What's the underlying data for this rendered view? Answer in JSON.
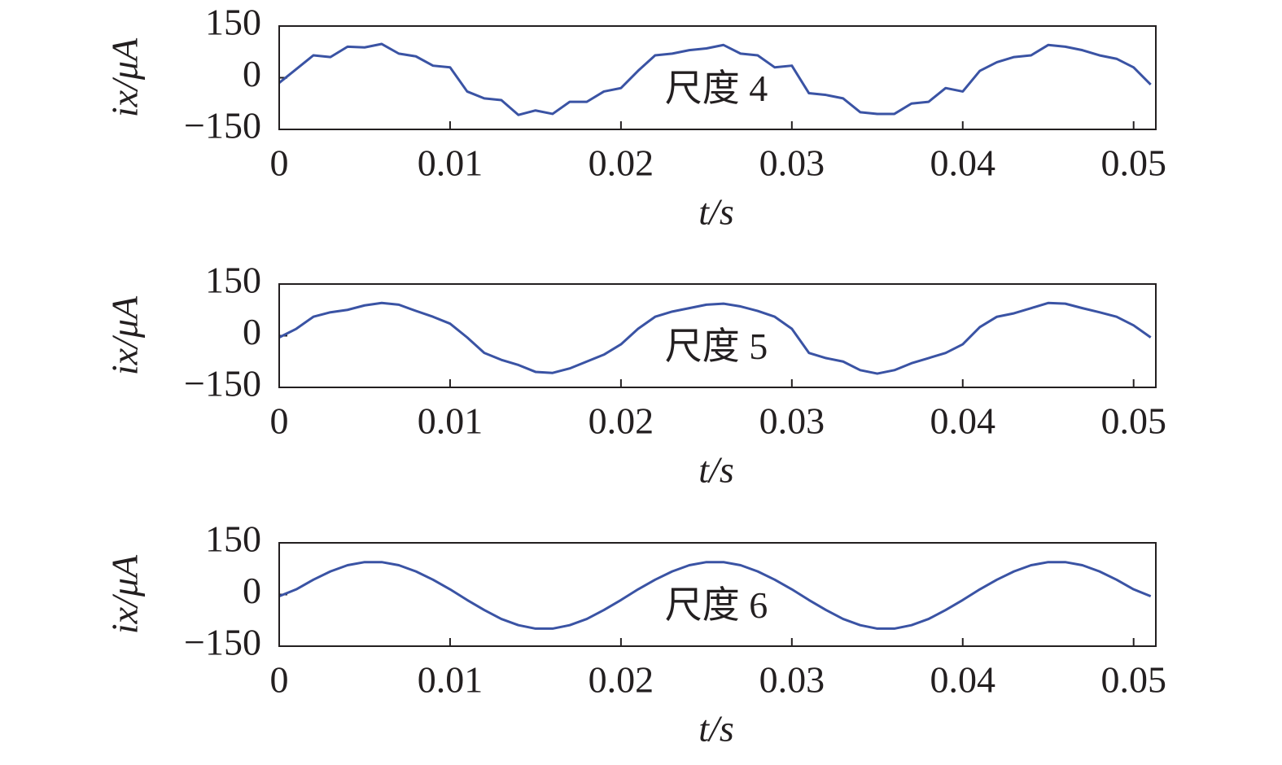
{
  "chart_data": [
    {
      "type": "line",
      "annotation": "尺度 4",
      "xlabel": "t/s",
      "ylabel": "ix/μA",
      "x": [
        0,
        0.001,
        0.002,
        0.003,
        0.004,
        0.005,
        0.006,
        0.007,
        0.008,
        0.009,
        0.01,
        0.011,
        0.012,
        0.013,
        0.014,
        0.015,
        0.016,
        0.017,
        0.018,
        0.019,
        0.02,
        0.021,
        0.022,
        0.023,
        0.024,
        0.025,
        0.026,
        0.027,
        0.028,
        0.029,
        0.03,
        0.031,
        0.032,
        0.033,
        0.034,
        0.035,
        0.036,
        0.037,
        0.038,
        0.039,
        0.04,
        0.041,
        0.042,
        0.043,
        0.044,
        0.045,
        0.046,
        0.047,
        0.048,
        0.049,
        0.05,
        0.051
      ],
      "series": [
        {
          "color": "#3a53a4",
          "values": [
            -15,
            25,
            65,
            60,
            90,
            88,
            98,
            70,
            62,
            35,
            30,
            -40,
            -60,
            -65,
            -108,
            -95,
            -105,
            -70,
            -70,
            -40,
            -30,
            20,
            65,
            70,
            80,
            85,
            95,
            70,
            65,
            30,
            35,
            -45,
            -50,
            -60,
            -100,
            -105,
            -105,
            -75,
            -70,
            -30,
            -40,
            20,
            45,
            60,
            65,
            95,
            90,
            80,
            65,
            55,
            30,
            -20
          ]
        }
      ],
      "xlim": [
        0,
        0.0513
      ],
      "xticks": [
        0,
        0.01,
        0.02,
        0.03,
        0.04,
        0.05
      ],
      "ylim": [
        -150,
        150
      ],
      "yticks": [
        {
          "value": -150,
          "label": "−150"
        },
        0,
        150
      ]
    },
    {
      "type": "line",
      "annotation": "尺度 5",
      "xlabel": "t/s",
      "ylabel": "ix/μA",
      "x": [
        0,
        0.001,
        0.002,
        0.003,
        0.004,
        0.005,
        0.006,
        0.007,
        0.008,
        0.009,
        0.01,
        0.011,
        0.012,
        0.013,
        0.014,
        0.015,
        0.016,
        0.017,
        0.018,
        0.019,
        0.02,
        0.021,
        0.022,
        0.023,
        0.024,
        0.025,
        0.026,
        0.027,
        0.028,
        0.029,
        0.03,
        0.031,
        0.032,
        0.033,
        0.034,
        0.035,
        0.036,
        0.037,
        0.038,
        0.039,
        0.04,
        0.041,
        0.042,
        0.043,
        0.044,
        0.045,
        0.046,
        0.047,
        0.048,
        0.049,
        0.05,
        0.051
      ],
      "series": [
        {
          "color": "#3a53a4",
          "values": [
            -5,
            20,
            55,
            68,
            75,
            88,
            95,
            90,
            72,
            55,
            35,
            -5,
            -50,
            -70,
            -85,
            -105,
            -108,
            -95,
            -75,
            -55,
            -25,
            20,
            55,
            70,
            80,
            90,
            93,
            85,
            72,
            55,
            20,
            -50,
            -65,
            -75,
            -100,
            -110,
            -100,
            -80,
            -65,
            -50,
            -25,
            25,
            55,
            65,
            80,
            95,
            93,
            80,
            68,
            55,
            30,
            -5
          ]
        }
      ],
      "xlim": [
        0,
        0.0513
      ],
      "xticks": [
        0,
        0.01,
        0.02,
        0.03,
        0.04,
        0.05
      ],
      "ylim": [
        -150,
        150
      ],
      "yticks": [
        {
          "value": -150,
          "label": "−150"
        },
        0,
        150
      ]
    },
    {
      "type": "line",
      "annotation": "尺度 6",
      "xlabel": "t/s",
      "ylabel": "ix/μA",
      "x": [
        0,
        0.001,
        0.002,
        0.003,
        0.004,
        0.005,
        0.006,
        0.007,
        0.008,
        0.009,
        0.01,
        0.011,
        0.012,
        0.013,
        0.014,
        0.015,
        0.016,
        0.017,
        0.018,
        0.019,
        0.02,
        0.021,
        0.022,
        0.023,
        0.024,
        0.025,
        0.026,
        0.027,
        0.028,
        0.029,
        0.03,
        0.031,
        0.032,
        0.033,
        0.034,
        0.035,
        0.036,
        0.037,
        0.038,
        0.039,
        0.04,
        0.041,
        0.042,
        0.043,
        0.044,
        0.045,
        0.046,
        0.047,
        0.048,
        0.049,
        0.05,
        0.051
      ],
      "series": [
        {
          "color": "#3a53a4",
          "values": [
            -5,
            15,
            43,
            67,
            85,
            94,
            94,
            85,
            67,
            43,
            15,
            -16,
            -45,
            -71,
            -89,
            -99,
            -99,
            -89,
            -71,
            -45,
            -16,
            15,
            43,
            67,
            85,
            94,
            94,
            85,
            67,
            43,
            15,
            -16,
            -45,
            -71,
            -89,
            -99,
            -99,
            -89,
            -71,
            -45,
            -16,
            15,
            43,
            67,
            85,
            94,
            94,
            85,
            67,
            43,
            15,
            -5
          ]
        }
      ],
      "xlim": [
        0,
        0.0513
      ],
      "xticks": [
        0,
        0.01,
        0.02,
        0.03,
        0.04,
        0.05
      ],
      "ylim": [
        -150,
        150
      ],
      "yticks": [
        {
          "value": -150,
          "label": "−150"
        },
        0,
        150
      ]
    }
  ]
}
